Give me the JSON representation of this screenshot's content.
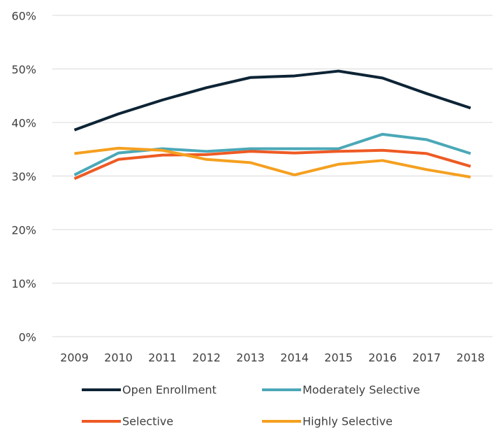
{
  "chart_data": {
    "type": "line",
    "categories": [
      "2009",
      "2010",
      "2011",
      "2012",
      "2013",
      "2014",
      "2015",
      "2016",
      "2017",
      "2018"
    ],
    "series": [
      {
        "name": "Open Enrollment",
        "color": "#0d2435",
        "values": [
          38.6,
          41.6,
          44.2,
          46.5,
          48.4,
          48.7,
          49.6,
          48.3,
          45.4,
          42.7
        ]
      },
      {
        "name": "Moderately Selective",
        "color": "#4ba8b7",
        "values": [
          30.2,
          34.3,
          35.1,
          34.6,
          35.1,
          35.1,
          35.1,
          37.8,
          36.8,
          34.2
        ]
      },
      {
        "name": "Selective",
        "color": "#ee5a24",
        "values": [
          29.5,
          33.1,
          33.9,
          34.0,
          34.6,
          34.3,
          34.6,
          34.8,
          34.2,
          31.8
        ]
      },
      {
        "name": "Highly Selective",
        "color": "#f5a020",
        "values": [
          34.2,
          35.2,
          34.8,
          33.1,
          32.5,
          30.2,
          32.2,
          32.9,
          31.2,
          29.8
        ]
      }
    ],
    "ylim": [
      0,
      60
    ],
    "yticks": [
      {
        "value": 0,
        "label": "0%"
      },
      {
        "value": 10,
        "label": "10%"
      },
      {
        "value": 20,
        "label": "20%"
      },
      {
        "value": 30,
        "label": "30%"
      },
      {
        "value": 40,
        "label": "40%"
      },
      {
        "value": 50,
        "label": "50%"
      },
      {
        "value": 60,
        "label": "60%"
      }
    ],
    "grid": true,
    "legend": "bottom"
  }
}
